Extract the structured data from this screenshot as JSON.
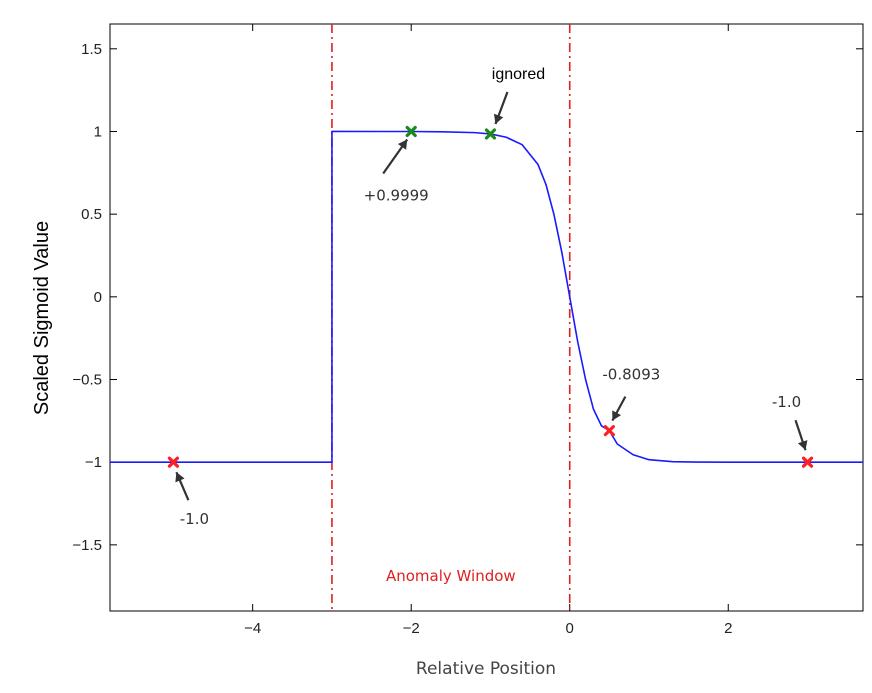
{
  "chart_data": {
    "type": "line",
    "xlabel": "Relative Position",
    "ylabel": "Scaled Sigmoid Value",
    "xlim": [
      -5.8,
      3.7
    ],
    "ylim": [
      -1.9,
      1.65
    ],
    "xticks": [
      -4,
      -2,
      0,
      2
    ],
    "xtick_labels": [
      "−4",
      "−2",
      "0",
      "2"
    ],
    "yticks": [
      1.5,
      1,
      0.5,
      0,
      -0.5,
      -1,
      -1.5
    ],
    "ytick_labels": [
      "1.5",
      "1",
      "0.5",
      "0",
      "−0.5",
      "−1",
      "−1.5"
    ],
    "grid": false,
    "series": [
      {
        "color": "#1a1aff",
        "x": [
          -5.8,
          -3.0,
          -3.0,
          -2.0,
          -1.6,
          -1.2,
          -1.0,
          -0.8,
          -0.6,
          -0.4,
          -0.3,
          -0.2,
          -0.1,
          0.0,
          0.1,
          0.2,
          0.3,
          0.4,
          0.5,
          0.6,
          0.8,
          1.0,
          1.3,
          1.6,
          2.0,
          3.7
        ],
        "y": [
          -1.0,
          -1.0,
          1.0,
          0.9999,
          0.998,
          0.993,
          0.985,
          0.965,
          0.92,
          0.8,
          0.68,
          0.5,
          0.27,
          0.0,
          -0.27,
          -0.5,
          -0.68,
          -0.78,
          -0.8093,
          -0.89,
          -0.955,
          -0.985,
          -0.997,
          -0.9995,
          -1.0,
          -1.0
        ]
      }
    ],
    "anomaly_window": {
      "x_start": -3.0,
      "x_end": 0.0,
      "label": "Anomaly Window",
      "color": "#e02020"
    },
    "points": [
      {
        "x": -5.0,
        "y": -1.0,
        "color": "#ff2020",
        "label": "-1.0"
      },
      {
        "x": -2.0,
        "y": 0.9999,
        "color": "#1a8a1a",
        "label": "+0.9999"
      },
      {
        "x": -1.0,
        "y": 0.985,
        "color": "#1a8a1a",
        "label": "ignored"
      },
      {
        "x": 0.5,
        "y": -0.8093,
        "color": "#ff2020",
        "label": "-0.8093"
      },
      {
        "x": 3.0,
        "y": -1.0,
        "color": "#ff2020",
        "label": "-1.0"
      }
    ]
  }
}
